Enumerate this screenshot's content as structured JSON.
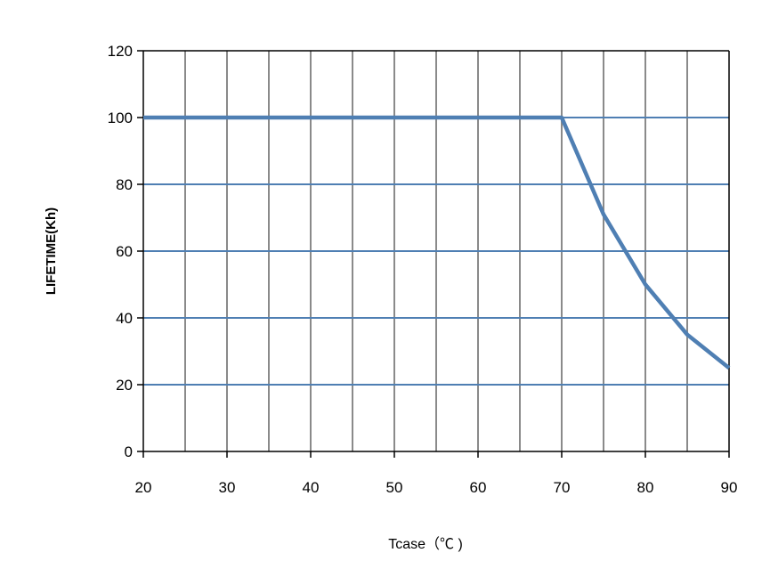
{
  "chart_data": {
    "type": "line",
    "title": "",
    "xlabel": "Tcase（℃ )",
    "ylabel": "LIFETIME(Kh)",
    "xlim": [
      20,
      90
    ],
    "ylim": [
      0,
      120
    ],
    "x_ticks": [
      "20",
      "30",
      "40",
      "50",
      "60",
      "70",
      "80",
      "90"
    ],
    "y_ticks": [
      "0",
      "20",
      "40",
      "60",
      "80",
      "100",
      "120"
    ],
    "x_grid_step": 5,
    "y_grid_step": 20,
    "grid": true,
    "series": [
      {
        "x": [
          20,
          70,
          75,
          80,
          85,
          90
        ],
        "y": [
          100,
          100,
          71,
          50,
          35,
          25
        ]
      }
    ],
    "colors": {
      "line": "#4f7fb3",
      "horizontal_grid": "#4f7fb3",
      "vertical_grid": "#8a8a8a",
      "axis": "#000000"
    }
  }
}
